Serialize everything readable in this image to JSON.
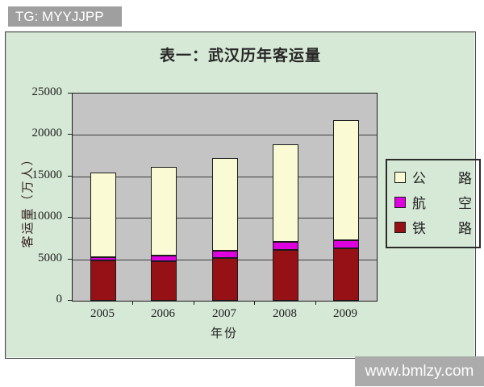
{
  "badge": {
    "text": "TG: MYYJJPP"
  },
  "watermark": {
    "text": "www.bmlzy.com"
  },
  "chart": {
    "title": "表一：武汉历年客运量",
    "ylabel": "客运量（万人）",
    "xlabel": "年份",
    "colors": {
      "panel_bg": "#d6e9d6",
      "plot_bg": "#c4c4c4",
      "road": "#fafad4",
      "air": "#df00df",
      "rail": "#951116",
      "border": "#1b1b1b"
    },
    "legend_items": [
      {
        "key": "road",
        "label": "公路",
        "chars": [
          "公",
          "路"
        ],
        "color": "#fafad4"
      },
      {
        "key": "air",
        "label": "航空",
        "chars": [
          "航",
          "空"
        ],
        "color": "#df00df"
      },
      {
        "key": "rail",
        "label": "铁路",
        "chars": [
          "铁",
          "路"
        ],
        "color": "#951116"
      }
    ]
  },
  "chart_data": {
    "type": "bar",
    "stacked": true,
    "title": "表一：武汉历年客运量",
    "xlabel": "年份",
    "ylabel": "客运量（万人）",
    "categories": [
      "2005",
      "2006",
      "2007",
      "2008",
      "2009"
    ],
    "series": [
      {
        "name": "铁路",
        "key": "rail",
        "color": "#951116",
        "values": [
          4900,
          4800,
          5200,
          6100,
          6300
        ]
      },
      {
        "name": "航空",
        "key": "air",
        "color": "#df00df",
        "values": [
          400,
          700,
          900,
          1000,
          1000
        ]
      },
      {
        "name": "公路",
        "key": "road",
        "color": "#fafad4",
        "values": [
          10200,
          10700,
          11200,
          11800,
          14500
        ]
      }
    ],
    "totals": [
      15500,
      16200,
      17300,
      18900,
      21800
    ],
    "stack_order_bottom_to_top": [
      "铁路",
      "航空",
      "公路"
    ],
    "ylim": [
      0,
      25000
    ],
    "yticks": [
      0,
      5000,
      10000,
      15000,
      20000,
      25000
    ],
    "grid": true,
    "legend_position": "right"
  }
}
